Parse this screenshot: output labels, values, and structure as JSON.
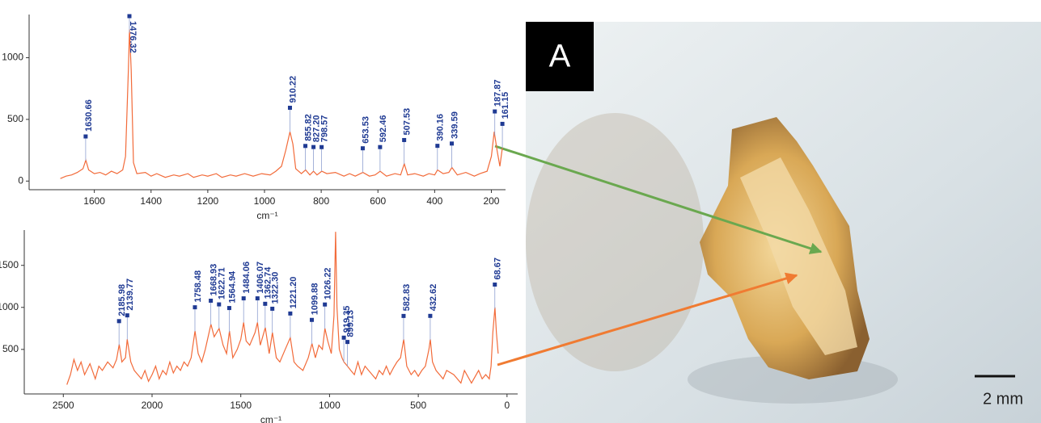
{
  "chart_data": [
    {
      "type": "line",
      "xlabel": "cm⁻¹",
      "xlim": [
        1830,
        150
      ],
      "ylim": [
        -70,
        1350
      ],
      "xticks": [
        1600,
        1400,
        1200,
        1000,
        800,
        600,
        400,
        200
      ],
      "yticks": [
        0,
        500,
        1000
      ],
      "annotation_color": "#1f3a93",
      "x": [
        1720,
        1700,
        1680,
        1660,
        1640,
        1630,
        1620,
        1600,
        1580,
        1560,
        1540,
        1520,
        1500,
        1490,
        1480,
        1476,
        1470,
        1462,
        1450,
        1420,
        1400,
        1380,
        1350,
        1320,
        1300,
        1270,
        1250,
        1220,
        1200,
        1170,
        1150,
        1120,
        1100,
        1070,
        1040,
        1010,
        980,
        960,
        940,
        925,
        910,
        900,
        890,
        870,
        855,
        840,
        827,
        815,
        798,
        780,
        750,
        720,
        700,
        680,
        653,
        630,
        610,
        592,
        570,
        540,
        520,
        507,
        495,
        470,
        440,
        420,
        400,
        390,
        370,
        350,
        339,
        320,
        290,
        260,
        240,
        215,
        200,
        190,
        180,
        170,
        161
      ],
      "series": [
        {
          "color": "#f26b3a",
          "values": [
            20,
            40,
            50,
            70,
            100,
            170,
            90,
            60,
            70,
            50,
            80,
            60,
            90,
            200,
            900,
            1230,
            900,
            150,
            60,
            70,
            40,
            60,
            30,
            50,
            40,
            60,
            30,
            50,
            40,
            60,
            30,
            50,
            40,
            60,
            40,
            60,
            50,
            80,
            120,
            250,
            400,
            300,
            100,
            60,
            90,
            50,
            80,
            50,
            80,
            60,
            70,
            40,
            60,
            40,
            70,
            40,
            50,
            80,
            40,
            60,
            50,
            140,
            50,
            60,
            40,
            60,
            50,
            90,
            60,
            70,
            110,
            50,
            70,
            40,
            60,
            80,
            200,
            400,
            250,
            120,
            270
          ]
        }
      ],
      "annotations": [
        {
          "text": "1630.66",
          "x": 1630.66
        },
        {
          "text": "1476.32",
          "x": 1476.32
        },
        {
          "text": "910.22",
          "x": 910.22
        },
        {
          "text": "855.82",
          "x": 855.82
        },
        {
          "text": "827.20",
          "x": 827.2
        },
        {
          "text": "798.57",
          "x": 798.57
        },
        {
          "text": "653.53",
          "x": 653.53
        },
        {
          "text": "592.46",
          "x": 592.46
        },
        {
          "text": "507.53",
          "x": 507.53
        },
        {
          "text": "390.16",
          "x": 390.16
        },
        {
          "text": "339.59",
          "x": 339.59
        },
        {
          "text": "187.87",
          "x": 187.87
        },
        {
          "text": "161.15",
          "x": 161.15
        }
      ]
    },
    {
      "type": "line",
      "xlabel": "cm⁻¹",
      "xlim": [
        2720,
        -60
      ],
      "ylim": [
        -30,
        1920
      ],
      "xticks": [
        2500,
        2000,
        1500,
        1000,
        500,
        0
      ],
      "yticks": [
        500,
        1000,
        1500
      ],
      "annotation_color": "#1f3a93",
      "x": [
        2480,
        2460,
        2440,
        2420,
        2400,
        2380,
        2350,
        2320,
        2300,
        2280,
        2250,
        2220,
        2200,
        2185,
        2170,
        2150,
        2140,
        2120,
        2100,
        2080,
        2060,
        2040,
        2020,
        2000,
        1980,
        1960,
        1940,
        1920,
        1900,
        1880,
        1860,
        1840,
        1820,
        1800,
        1780,
        1758,
        1740,
        1720,
        1700,
        1668,
        1650,
        1622,
        1600,
        1580,
        1564,
        1545,
        1520,
        1500,
        1484,
        1470,
        1450,
        1420,
        1406,
        1390,
        1362,
        1340,
        1322,
        1300,
        1280,
        1250,
        1221,
        1200,
        1180,
        1150,
        1120,
        1099,
        1080,
        1060,
        1040,
        1026,
        1010,
        990,
        975,
        966,
        958,
        945,
        930,
        919,
        899,
        880,
        860,
        840,
        820,
        800,
        780,
        760,
        740,
        720,
        700,
        680,
        660,
        640,
        620,
        600,
        582,
        565,
        540,
        520,
        500,
        480,
        460,
        440,
        432,
        420,
        400,
        380,
        360,
        340,
        300,
        260,
        240,
        200,
        160,
        140,
        120,
        100,
        90,
        80,
        68,
        60,
        50
      ],
      "series": [
        {
          "color": "#f26b3a",
          "values": [
            80,
            200,
            380,
            250,
            350,
            200,
            330,
            150,
            300,
            250,
            350,
            280,
            380,
            560,
            350,
            400,
            620,
            350,
            250,
            200,
            150,
            250,
            120,
            200,
            300,
            150,
            250,
            200,
            350,
            220,
            300,
            250,
            350,
            300,
            400,
            720,
            450,
            350,
            500,
            800,
            650,
            750,
            550,
            450,
            720,
            400,
            500,
            620,
            820,
            600,
            550,
            700,
            820,
            550,
            760,
            450,
            700,
            400,
            350,
            500,
            640,
            350,
            300,
            250,
            400,
            570,
            400,
            550,
            500,
            750,
            600,
            450,
            900,
            1900,
            1000,
            500,
            400,
            350,
            300,
            250,
            200,
            350,
            200,
            300,
            250,
            200,
            150,
            250,
            200,
            300,
            200,
            280,
            350,
            400,
            620,
            300,
            200,
            250,
            180,
            250,
            300,
            500,
            620,
            350,
            250,
            200,
            150,
            250,
            200,
            100,
            250,
            100,
            250,
            150,
            200,
            150,
            300,
            700,
            1000,
            700,
            450
          ]
        }
      ],
      "annotations": [
        {
          "text": "2185.98",
          "x": 2185.98
        },
        {
          "text": "2139.77",
          "x": 2139.77
        },
        {
          "text": "1758.48",
          "x": 1758.48
        },
        {
          "text": "1668.93",
          "x": 1668.93
        },
        {
          "text": "1622.71",
          "x": 1622.71
        },
        {
          "text": "1564.94",
          "x": 1564.94
        },
        {
          "text": "1484.06",
          "x": 1484.06
        },
        {
          "text": "1406.07",
          "x": 1406.07
        },
        {
          "text": "1362.74",
          "x": 1362.74
        },
        {
          "text": "1322.30",
          "x": 1322.3
        },
        {
          "text": "1221.20",
          "x": 1221.2
        },
        {
          "text": "1099.88",
          "x": 1099.88
        },
        {
          "text": "1026.22",
          "x": 1026.22
        },
        {
          "text": "919.35",
          "x": 919.35
        },
        {
          "text": "899.13",
          "x": 899.13
        },
        {
          "text": "582.83",
          "x": 582.83
        },
        {
          "text": "432.62",
          "x": 432.62
        },
        {
          "text": "68.67",
          "x": 68.67
        }
      ]
    }
  ],
  "photo": {
    "panel_label": "A",
    "scale_bar": "2 mm"
  }
}
